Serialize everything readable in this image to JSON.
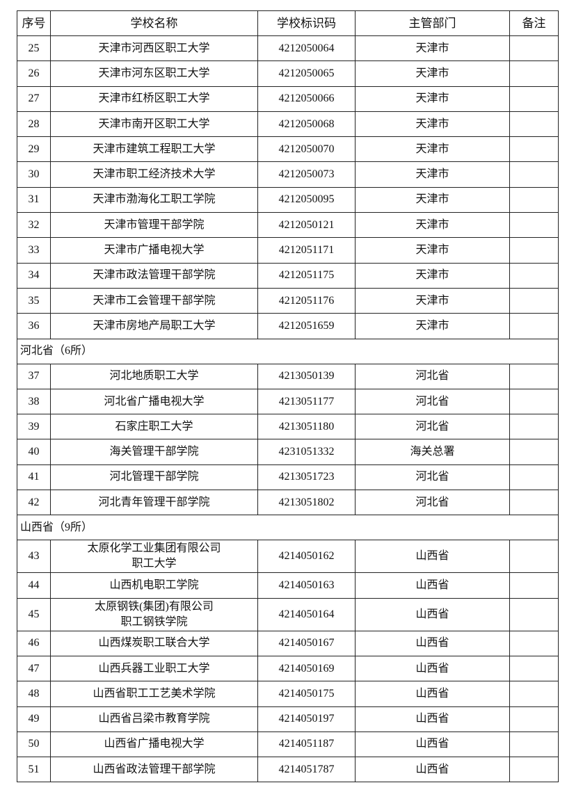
{
  "headers": [
    "序号",
    "学校名称",
    "学校标识码",
    "主管部门",
    "备注"
  ],
  "sections": [
    {
      "title": "",
      "rows": [
        {
          "no": "25",
          "name": "天津市河西区职工大学",
          "code": "4212050064",
          "dept": "天津市",
          "note": ""
        },
        {
          "no": "26",
          "name": "天津市河东区职工大学",
          "code": "4212050065",
          "dept": "天津市",
          "note": ""
        },
        {
          "no": "27",
          "name": "天津市红桥区职工大学",
          "code": "4212050066",
          "dept": "天津市",
          "note": ""
        },
        {
          "no": "28",
          "name": "天津市南开区职工大学",
          "code": "4212050068",
          "dept": "天津市",
          "note": ""
        },
        {
          "no": "29",
          "name": "天津市建筑工程职工大学",
          "code": "4212050070",
          "dept": "天津市",
          "note": ""
        },
        {
          "no": "30",
          "name": "天津市职工经济技术大学",
          "code": "4212050073",
          "dept": "天津市",
          "note": ""
        },
        {
          "no": "31",
          "name": "天津市渤海化工职工学院",
          "code": "4212050095",
          "dept": "天津市",
          "note": ""
        },
        {
          "no": "32",
          "name": "天津市管理干部学院",
          "code": "4212050121",
          "dept": "天津市",
          "note": ""
        },
        {
          "no": "33",
          "name": "天津市广播电视大学",
          "code": "4212051171",
          "dept": "天津市",
          "note": ""
        },
        {
          "no": "34",
          "name": "天津市政法管理干部学院",
          "code": "4212051175",
          "dept": "天津市",
          "note": ""
        },
        {
          "no": "35",
          "name": "天津市工会管理干部学院",
          "code": "4212051176",
          "dept": "天津市",
          "note": ""
        },
        {
          "no": "36",
          "name": "天津市房地产局职工大学",
          "code": "4212051659",
          "dept": "天津市",
          "note": ""
        }
      ]
    },
    {
      "title": "河北省（6所）",
      "rows": [
        {
          "no": "37",
          "name": "河北地质职工大学",
          "code": "4213050139",
          "dept": "河北省",
          "note": ""
        },
        {
          "no": "38",
          "name": "河北省广播电视大学",
          "code": "4213051177",
          "dept": "河北省",
          "note": ""
        },
        {
          "no": "39",
          "name": "石家庄职工大学",
          "code": "4213051180",
          "dept": "河北省",
          "note": ""
        },
        {
          "no": "40",
          "name": "海关管理干部学院",
          "code": "4231051332",
          "dept": "海关总署",
          "note": ""
        },
        {
          "no": "41",
          "name": "河北管理干部学院",
          "code": "4213051723",
          "dept": "河北省",
          "note": ""
        },
        {
          "no": "42",
          "name": "河北青年管理干部学院",
          "code": "4213051802",
          "dept": "河北省",
          "note": ""
        }
      ]
    },
    {
      "title": "山西省（9所）",
      "rows": [
        {
          "no": "43",
          "name": "太原化学工业集团有限公司\n职工大学",
          "code": "4214050162",
          "dept": "山西省",
          "note": ""
        },
        {
          "no": "44",
          "name": "山西机电职工学院",
          "code": "4214050163",
          "dept": "山西省",
          "note": ""
        },
        {
          "no": "45",
          "name": "太原钢铁(集团)有限公司\n职工钢铁学院",
          "code": "4214050164",
          "dept": "山西省",
          "note": ""
        },
        {
          "no": "46",
          "name": "山西煤炭职工联合大学",
          "code": "4214050167",
          "dept": "山西省",
          "note": ""
        },
        {
          "no": "47",
          "name": "山西兵器工业职工大学",
          "code": "4214050169",
          "dept": "山西省",
          "note": ""
        },
        {
          "no": "48",
          "name": "山西省职工工艺美术学院",
          "code": "4214050175",
          "dept": "山西省",
          "note": ""
        },
        {
          "no": "49",
          "name": "山西省吕梁市教育学院",
          "code": "4214050197",
          "dept": "山西省",
          "note": ""
        },
        {
          "no": "50",
          "name": "山西省广播电视大学",
          "code": "4214051187",
          "dept": "山西省",
          "note": ""
        },
        {
          "no": "51",
          "name": "山西省政法管理干部学院",
          "code": "4214051787",
          "dept": "山西省",
          "note": ""
        }
      ]
    }
  ]
}
